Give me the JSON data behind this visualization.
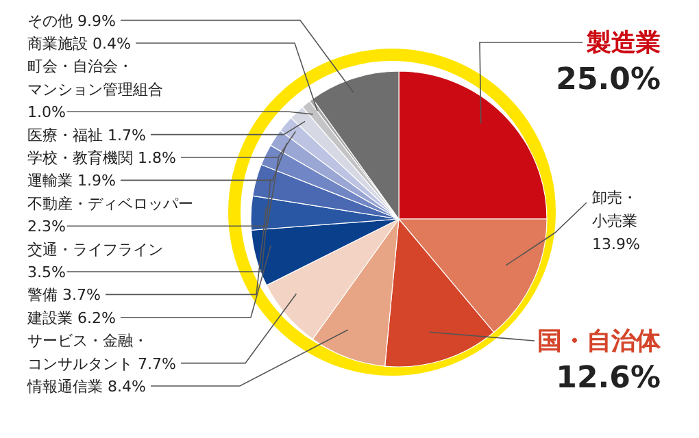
{
  "chart_data": {
    "type": "pie",
    "categories": [
      "製造業",
      "卸売・小売業",
      "国・自治体",
      "情報通信業",
      "サービス・金融・コンサルタント",
      "建設業",
      "警備",
      "交通・ライフライン",
      "不動産・ディベロッパー",
      "運輸業",
      "学校・教育機関",
      "医療・福祉",
      "町会・自治会・マンション管理組合",
      "商業施設",
      "その他"
    ],
    "values": [
      25.0,
      13.9,
      12.6,
      8.4,
      7.7,
      6.2,
      3.7,
      3.5,
      2.3,
      1.9,
      1.8,
      1.7,
      1.0,
      0.4,
      9.9
    ],
    "value_labels": [
      "25.0%",
      "13.9%",
      "12.6%",
      "8.4%",
      "7.7%",
      "6.2%",
      "3.7%",
      "3.5%",
      "2.3%",
      "1.9%",
      "1.8%",
      "1.7%",
      "1.0%",
      "0.4%",
      "9.9%"
    ],
    "colors": [
      "#cc0a14",
      "#e07a5a",
      "#d4452a",
      "#e8a585",
      "#f3d3c3",
      "#0a3f8c",
      "#2a57a3",
      "#4a69b2",
      "#7186c4",
      "#9aa6d4",
      "#bcc3e3",
      "#d6d8e4",
      "#c4c4c6",
      "#a6a6a8",
      "#6e6e6e"
    ]
  }
}
